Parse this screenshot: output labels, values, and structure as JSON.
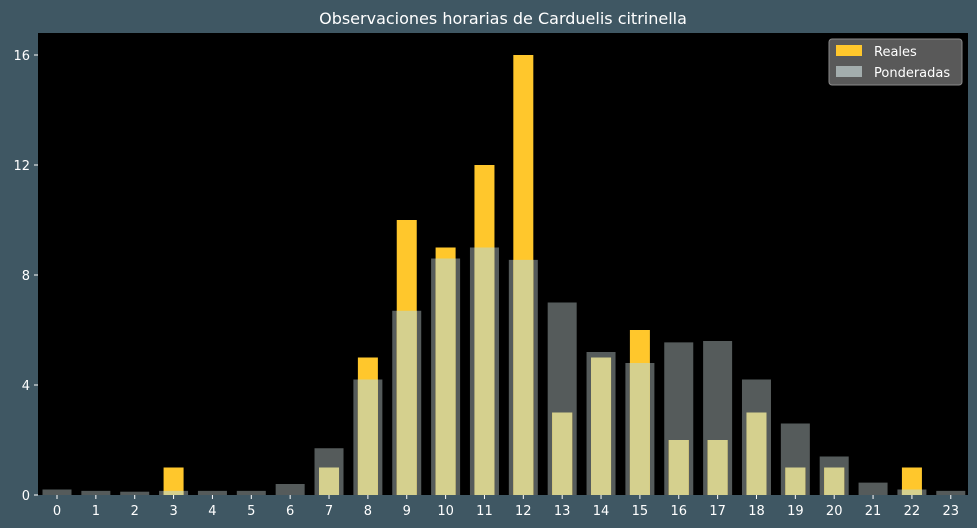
{
  "chart_data": {
    "type": "bar",
    "title": "Observaciones horarias de Carduelis citrinella",
    "xlabel": "",
    "ylabel": "",
    "categories": [
      "0",
      "1",
      "2",
      "3",
      "4",
      "5",
      "6",
      "7",
      "8",
      "9",
      "10",
      "11",
      "12",
      "13",
      "14",
      "15",
      "16",
      "17",
      "18",
      "19",
      "20",
      "21",
      "22",
      "23"
    ],
    "ylim": [
      0,
      16.8
    ],
    "yticks": [
      0,
      4,
      8,
      12,
      16
    ],
    "grid": false,
    "legend_position": "top-right",
    "series": [
      {
        "name": "Reales",
        "color": "#ffc72c",
        "values": [
          0,
          0,
          0,
          1,
          0,
          0,
          0,
          1,
          5,
          10,
          9,
          12,
          16,
          3,
          5,
          6,
          2,
          2,
          3,
          1,
          1,
          0,
          1,
          0
        ]
      },
      {
        "name": "Ponderadas",
        "color": "#bcc9c9",
        "values": [
          0.2,
          0.15,
          0.12,
          0.15,
          0.15,
          0.15,
          0.4,
          1.7,
          4.2,
          6.7,
          8.6,
          9.0,
          8.55,
          7.0,
          5.2,
          4.8,
          5.55,
          5.6,
          4.2,
          2.6,
          1.4,
          0.45,
          0.2,
          0.15
        ]
      }
    ]
  }
}
